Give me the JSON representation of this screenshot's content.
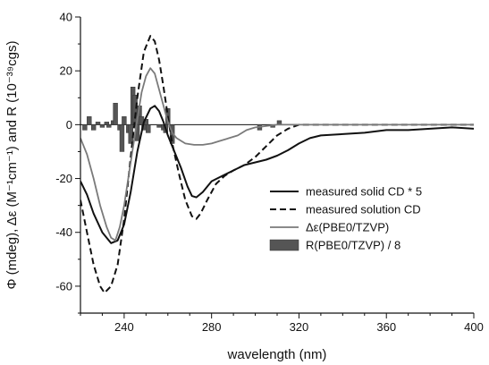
{
  "chart_data": {
    "type": "line",
    "xlabel": "wavelength (nm)",
    "ylabel": "Φ (mdeg), Δε (M⁻¹cm⁻¹) and R (10⁻³⁹cgs)",
    "xlim": [
      220,
      400
    ],
    "ylim": [
      -70,
      40
    ],
    "x_ticks": [
      240,
      280,
      320,
      360,
      400
    ],
    "y_ticks": [
      -60,
      -40,
      -20,
      0,
      20,
      40
    ],
    "zero_line": true,
    "grid": false,
    "legend_position": "center-right",
    "series": [
      {
        "name": "measured solid CD * 5",
        "kind": "line",
        "style": "solid",
        "color": "#111111",
        "points": [
          [
            220,
            -21
          ],
          [
            223,
            -26
          ],
          [
            226,
            -33
          ],
          [
            230,
            -40
          ],
          [
            234,
            -44
          ],
          [
            237,
            -43
          ],
          [
            240,
            -37
          ],
          [
            243,
            -25
          ],
          [
            246,
            -10
          ],
          [
            249,
            1
          ],
          [
            252,
            6
          ],
          [
            254,
            7
          ],
          [
            256,
            5
          ],
          [
            258,
            1
          ],
          [
            260,
            -4
          ],
          [
            263,
            -10
          ],
          [
            266,
            -16
          ],
          [
            269,
            -23
          ],
          [
            271,
            -26.5
          ],
          [
            273,
            -27
          ],
          [
            276,
            -25
          ],
          [
            280,
            -21
          ],
          [
            285,
            -19
          ],
          [
            290,
            -17
          ],
          [
            295,
            -15
          ],
          [
            300,
            -14
          ],
          [
            305,
            -13
          ],
          [
            310,
            -11.5
          ],
          [
            315,
            -9.5
          ],
          [
            320,
            -7
          ],
          [
            325,
            -5
          ],
          [
            330,
            -4
          ],
          [
            340,
            -3.5
          ],
          [
            350,
            -3
          ],
          [
            360,
            -2
          ],
          [
            370,
            -2
          ],
          [
            380,
            -1.5
          ],
          [
            390,
            -1
          ],
          [
            400,
            -1.5
          ]
        ]
      },
      {
        "name": "measured solution CD",
        "kind": "line",
        "style": "dashed",
        "color": "#111111",
        "points": [
          [
            220,
            -28
          ],
          [
            223,
            -40
          ],
          [
            226,
            -52
          ],
          [
            229,
            -60
          ],
          [
            231,
            -62.5
          ],
          [
            234,
            -60
          ],
          [
            237,
            -52
          ],
          [
            240,
            -35
          ],
          [
            243,
            -12
          ],
          [
            246,
            10
          ],
          [
            249,
            27
          ],
          [
            252,
            33
          ],
          [
            254,
            31
          ],
          [
            256,
            24
          ],
          [
            258,
            14
          ],
          [
            260,
            3
          ],
          [
            262,
            -7
          ],
          [
            265,
            -18
          ],
          [
            268,
            -28
          ],
          [
            271,
            -34
          ],
          [
            273,
            -35
          ],
          [
            275,
            -33
          ],
          [
            278,
            -28
          ],
          [
            282,
            -22
          ],
          [
            286,
            -19
          ],
          [
            290,
            -17
          ],
          [
            295,
            -15
          ],
          [
            300,
            -12
          ],
          [
            305,
            -8
          ],
          [
            310,
            -4
          ],
          [
            315,
            -1.5
          ],
          [
            320,
            0
          ],
          [
            330,
            0
          ],
          [
            340,
            0
          ],
          [
            360,
            0
          ],
          [
            380,
            0
          ],
          [
            400,
            0
          ]
        ]
      },
      {
        "name": "Δε(PBE0/TZVP)",
        "kind": "line",
        "style": "solid",
        "color": "#7a7a7a",
        "points": [
          [
            220,
            -5
          ],
          [
            223,
            -11
          ],
          [
            226,
            -20
          ],
          [
            229,
            -30
          ],
          [
            232,
            -38
          ],
          [
            234,
            -42
          ],
          [
            236,
            -43
          ],
          [
            238,
            -38
          ],
          [
            240,
            -30
          ],
          [
            243,
            -14
          ],
          [
            246,
            2
          ],
          [
            248,
            12
          ],
          [
            250,
            18
          ],
          [
            252,
            21
          ],
          [
            254,
            19
          ],
          [
            256,
            13
          ],
          [
            258,
            7
          ],
          [
            260,
            1
          ],
          [
            262,
            -3
          ],
          [
            264,
            -5
          ],
          [
            266,
            -6
          ],
          [
            268,
            -7
          ],
          [
            272,
            -7.5
          ],
          [
            276,
            -7.5
          ],
          [
            280,
            -7
          ],
          [
            284,
            -6
          ],
          [
            288,
            -5
          ],
          [
            292,
            -4
          ],
          [
            296,
            -2
          ],
          [
            300,
            -1
          ],
          [
            305,
            -0.5
          ],
          [
            310,
            0
          ],
          [
            330,
            0
          ],
          [
            360,
            0
          ],
          [
            400,
            0
          ]
        ]
      },
      {
        "name": "R(PBE0/TZVP) / 8",
        "kind": "bar",
        "color": "#555555",
        "bar_width": 2,
        "bars": [
          [
            222,
            -2
          ],
          [
            224,
            3
          ],
          [
            226,
            -2
          ],
          [
            228,
            1
          ],
          [
            230,
            -1
          ],
          [
            232,
            1
          ],
          [
            233,
            -1
          ],
          [
            235,
            1.5
          ],
          [
            236,
            8
          ],
          [
            238,
            -2
          ],
          [
            239,
            -10
          ],
          [
            240,
            3
          ],
          [
            242,
            -3
          ],
          [
            243,
            -7
          ],
          [
            244,
            14
          ],
          [
            245,
            11
          ],
          [
            246,
            -6
          ],
          [
            247,
            7
          ],
          [
            248,
            3
          ],
          [
            249,
            -2
          ],
          [
            250,
            2
          ],
          [
            251,
            -3
          ],
          [
            256,
            -1
          ],
          [
            258,
            -2
          ],
          [
            259,
            -3
          ],
          [
            260,
            6
          ],
          [
            262,
            -7
          ],
          [
            302,
            -2
          ],
          [
            308,
            -1
          ],
          [
            311,
            1.5
          ]
        ]
      }
    ]
  }
}
